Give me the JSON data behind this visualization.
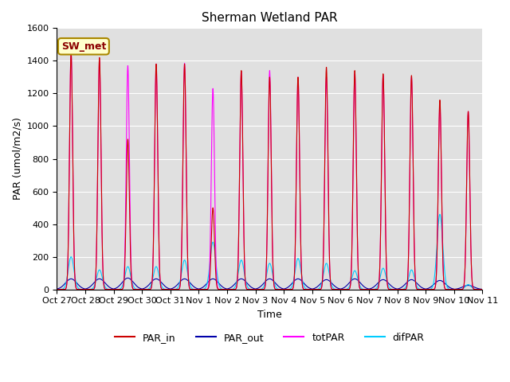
{
  "title": "Sherman Wetland PAR",
  "ylabel": "PAR (umol/m2/s)",
  "xlabel": "Time",
  "annotation": "SW_met",
  "ylim": [
    0,
    1600
  ],
  "yticks": [
    0,
    200,
    400,
    600,
    800,
    1000,
    1200,
    1400,
    1600
  ],
  "xtick_labels": [
    "Oct 27",
    "Oct 28",
    "Oct 29",
    "Oct 30",
    "Oct 31",
    "Nov 1",
    "Nov 2",
    "Nov 3",
    "Nov 4",
    "Nov 5",
    "Nov 6",
    "Nov 7",
    "Nov 8",
    "Nov 9",
    "Nov 10",
    "Nov 11"
  ],
  "n_days": 15,
  "background_color": "#e0e0e0",
  "par_in_color": "#cc0000",
  "par_out_color": "#0000aa",
  "totpar_color": "#ff00ff",
  "difpar_color": "#00ccff",
  "legend_labels": [
    "PAR_in",
    "PAR_out",
    "totPAR",
    "difPAR"
  ],
  "peaks_par_in": [
    1450,
    1420,
    920,
    1380,
    1380,
    500,
    1340,
    1300,
    1300,
    1360,
    1340,
    1320,
    1310,
    1160,
    1090
  ],
  "peaks_totpar": [
    1460,
    1400,
    1370,
    1380,
    1385,
    1230,
    1330,
    1340,
    1300,
    1300,
    1320,
    1310,
    1300,
    1140,
    1090
  ],
  "peaks_par_out": [
    65,
    65,
    70,
    65,
    65,
    65,
    65,
    65,
    65,
    60,
    65,
    60,
    60,
    55,
    25
  ],
  "peaks_difpar": [
    200,
    120,
    140,
    140,
    180,
    290,
    180,
    160,
    190,
    160,
    115,
    130,
    120,
    460,
    30
  ]
}
